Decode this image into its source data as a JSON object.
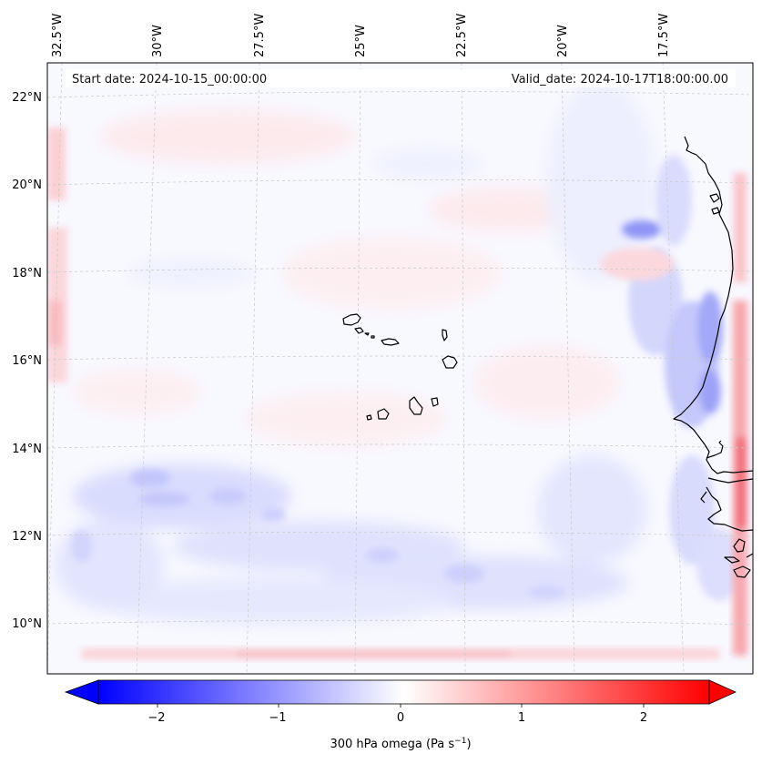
{
  "header": {
    "start_date": "Start date: 2024-10-15_00:00:00",
    "valid_date": "Valid_date: 2024-10-17T18:00:00.00"
  },
  "longitude_labels": [
    "32.5°W",
    "30°W",
    "27.5°W",
    "25°W",
    "22.5°W",
    "20°W",
    "17.5°W"
  ],
  "latitude_labels": [
    "22°N",
    "20°N",
    "18°N",
    "16°N",
    "14°N",
    "12°N",
    "10°N"
  ],
  "colorbar": {
    "ticks": [
      "−2",
      "−1",
      "0",
      "1",
      "2"
    ],
    "label_main": "300 hPa omega (Pa s",
    "label_sup": "−1",
    "label_end": ")",
    "vmin": -2.6,
    "vmax": 2.6,
    "negative_color": "#0000ff",
    "zero_color": "#ffffff",
    "positive_color": "#ff0000"
  },
  "colors": {
    "frame": "#000000",
    "coastline": "#000000",
    "gridline": "#c8c8c8"
  }
}
